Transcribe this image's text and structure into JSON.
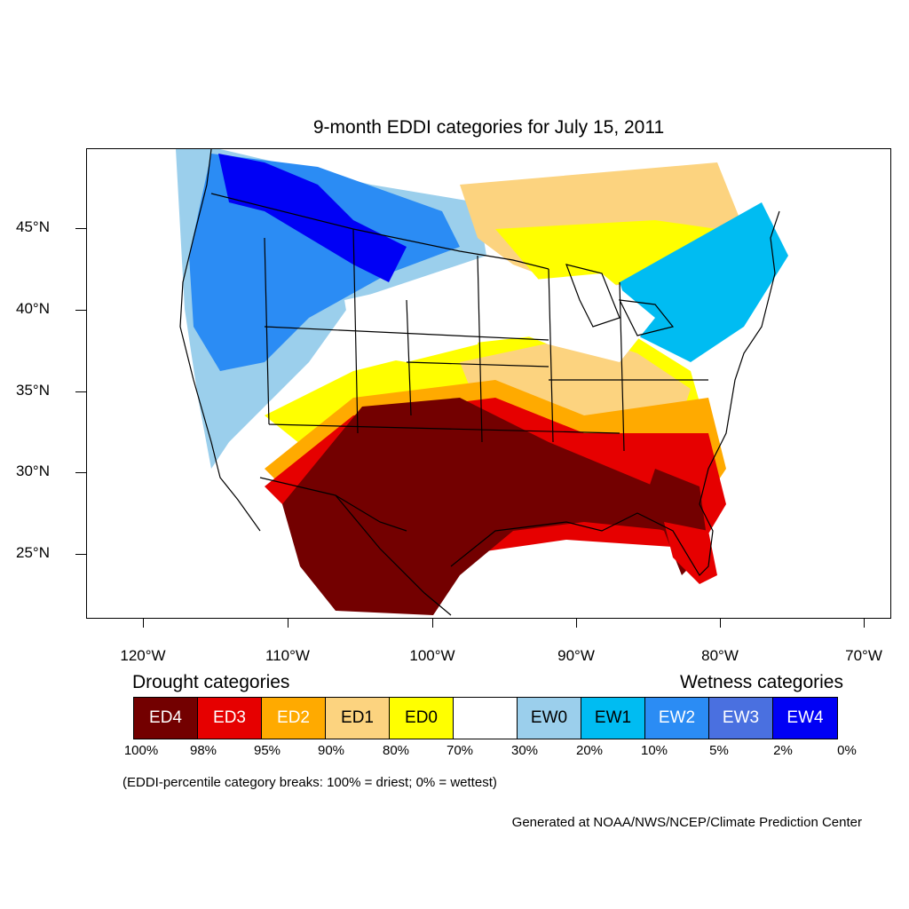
{
  "title": "9-month EDDI categories for July 15, 2011",
  "map": {
    "lat_labels": [
      "45°N",
      "40°N",
      "35°N",
      "30°N",
      "25°N"
    ],
    "lon_labels": [
      "120°W",
      "110°W",
      "100°W",
      "90°W",
      "80°W",
      "70°W"
    ],
    "colors": {
      "ED4": "#730000",
      "ED3": "#e60000",
      "ED2": "#ffaa00",
      "ED1": "#fcd37f",
      "ED0": "#ffff00",
      "neutral": "#ffffff",
      "EW0": "#9bcfec",
      "EW1": "#00bcf2",
      "EW2": "#2b8cf4",
      "EW3": "#4a70e0",
      "EW4": "#0000f5"
    }
  },
  "legend": {
    "drought_heading": "Drought categories",
    "wetness_heading": "Wetness categories",
    "categories": [
      {
        "label": "ED4",
        "color": "#730000",
        "text_color": "#ffffff"
      },
      {
        "label": "ED3",
        "color": "#e60000",
        "text_color": "#ffffff"
      },
      {
        "label": "ED2",
        "color": "#ffaa00",
        "text_color": "#ffffff"
      },
      {
        "label": "ED1",
        "color": "#fcd37f",
        "text_color": "#000000"
      },
      {
        "label": "ED0",
        "color": "#ffff00",
        "text_color": "#000000"
      },
      {
        "label": "",
        "color": "#ffffff",
        "text_color": "#000000"
      },
      {
        "label": "EW0",
        "color": "#9bcfec",
        "text_color": "#000000"
      },
      {
        "label": "EW1",
        "color": "#00bcf2",
        "text_color": "#000000"
      },
      {
        "label": "EW2",
        "color": "#2b8cf4",
        "text_color": "#ffffff"
      },
      {
        "label": "EW3",
        "color": "#4a70e0",
        "text_color": "#ffffff"
      },
      {
        "label": "EW4",
        "color": "#0000f5",
        "text_color": "#ffffff"
      }
    ],
    "percentiles": [
      "100%",
      "98%",
      "95%",
      "90%",
      "80%",
      "70%",
      "30%",
      "20%",
      "10%",
      "5%",
      "2%",
      "0%"
    ],
    "note": "(EDDI-percentile category breaks: 100% = driest; 0% = wettest)"
  },
  "credit": "Generated at NOAA/NWS/NCEP/Climate Prediction Center"
}
